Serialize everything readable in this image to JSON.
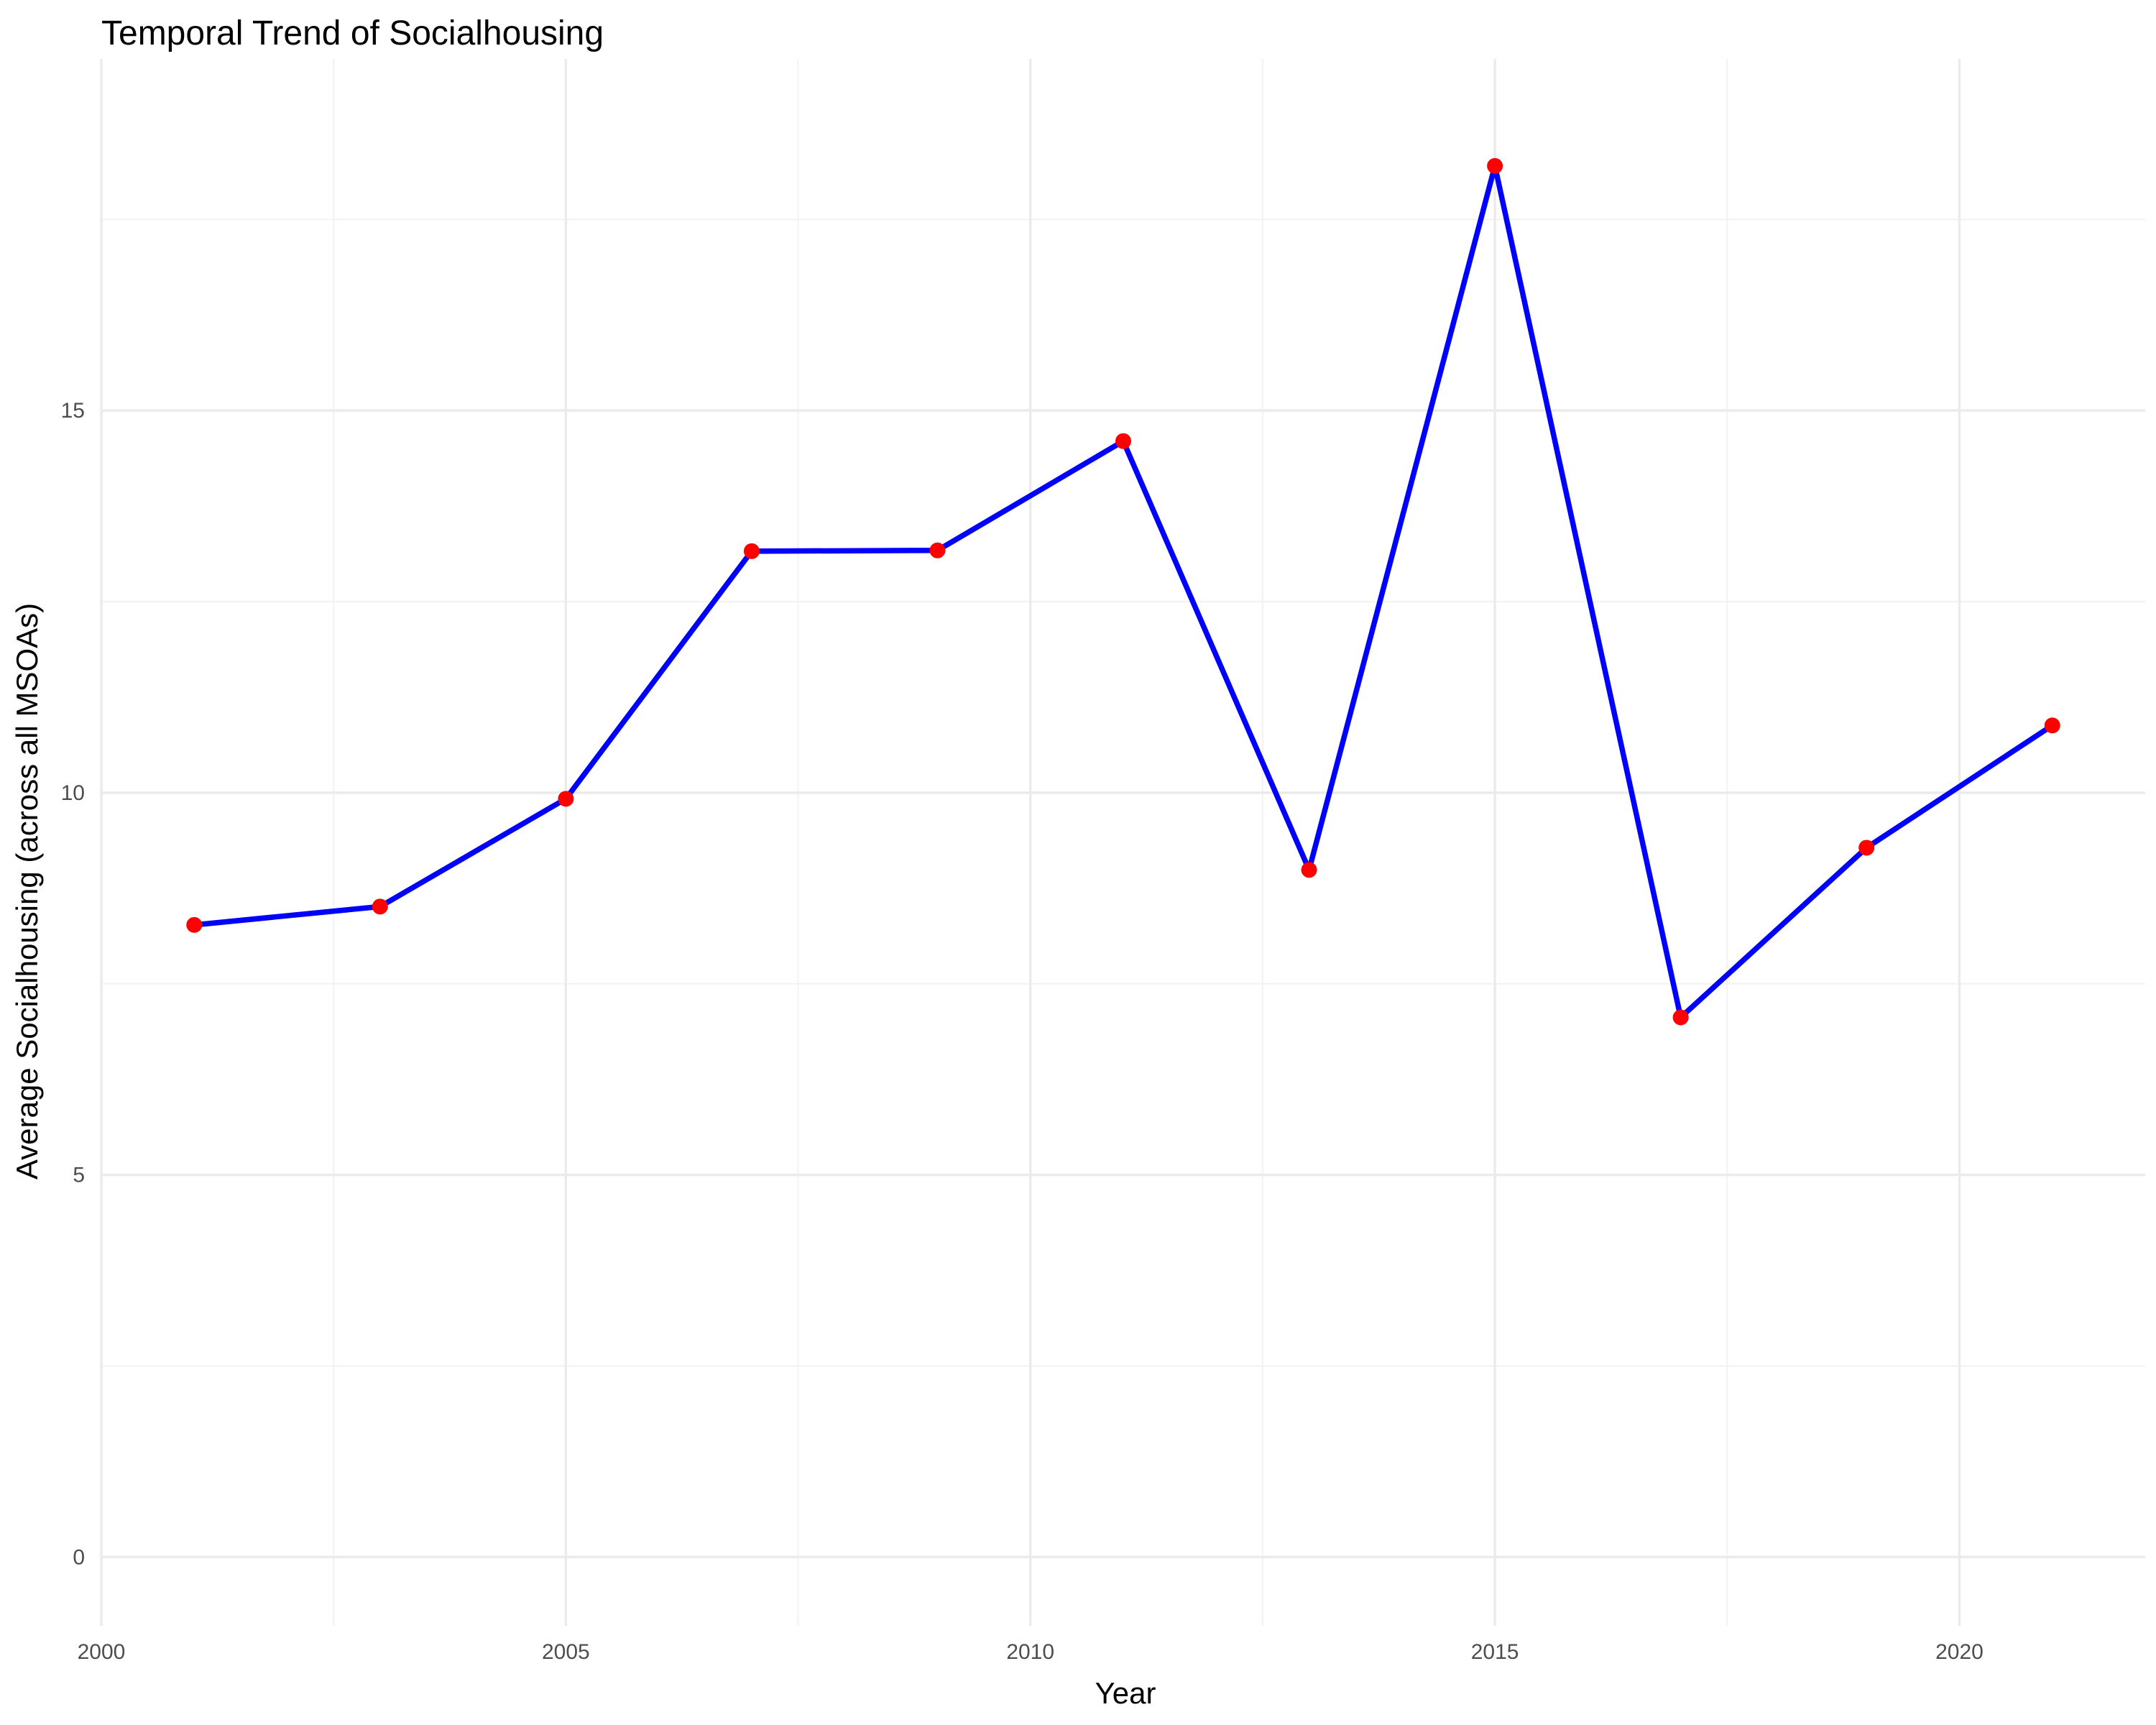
{
  "chart_data": {
    "type": "line",
    "title": "Temporal Trend of Socialhousing",
    "xlabel": "Year",
    "ylabel": "Average Socialhousing (across all MSOAs)",
    "xlim": [
      2000,
      2022
    ],
    "ylim": [
      -0.9,
      19.6
    ],
    "x_ticks": [
      2000,
      2005,
      2010,
      2015,
      2020
    ],
    "y_ticks": [
      0,
      5,
      10,
      15
    ],
    "grid": true,
    "legend": "none",
    "line_color": "#0000ff",
    "point_color": "#ff0000",
    "series": [
      {
        "x": [
          2001,
          2003,
          2005,
          2007,
          2009,
          2011,
          2013,
          2015,
          2017,
          2019,
          2021
        ],
        "y": [
          8.27,
          8.51,
          9.92,
          13.16,
          13.17,
          14.6,
          8.99,
          18.2,
          7.06,
          9.28,
          10.88
        ]
      }
    ]
  }
}
